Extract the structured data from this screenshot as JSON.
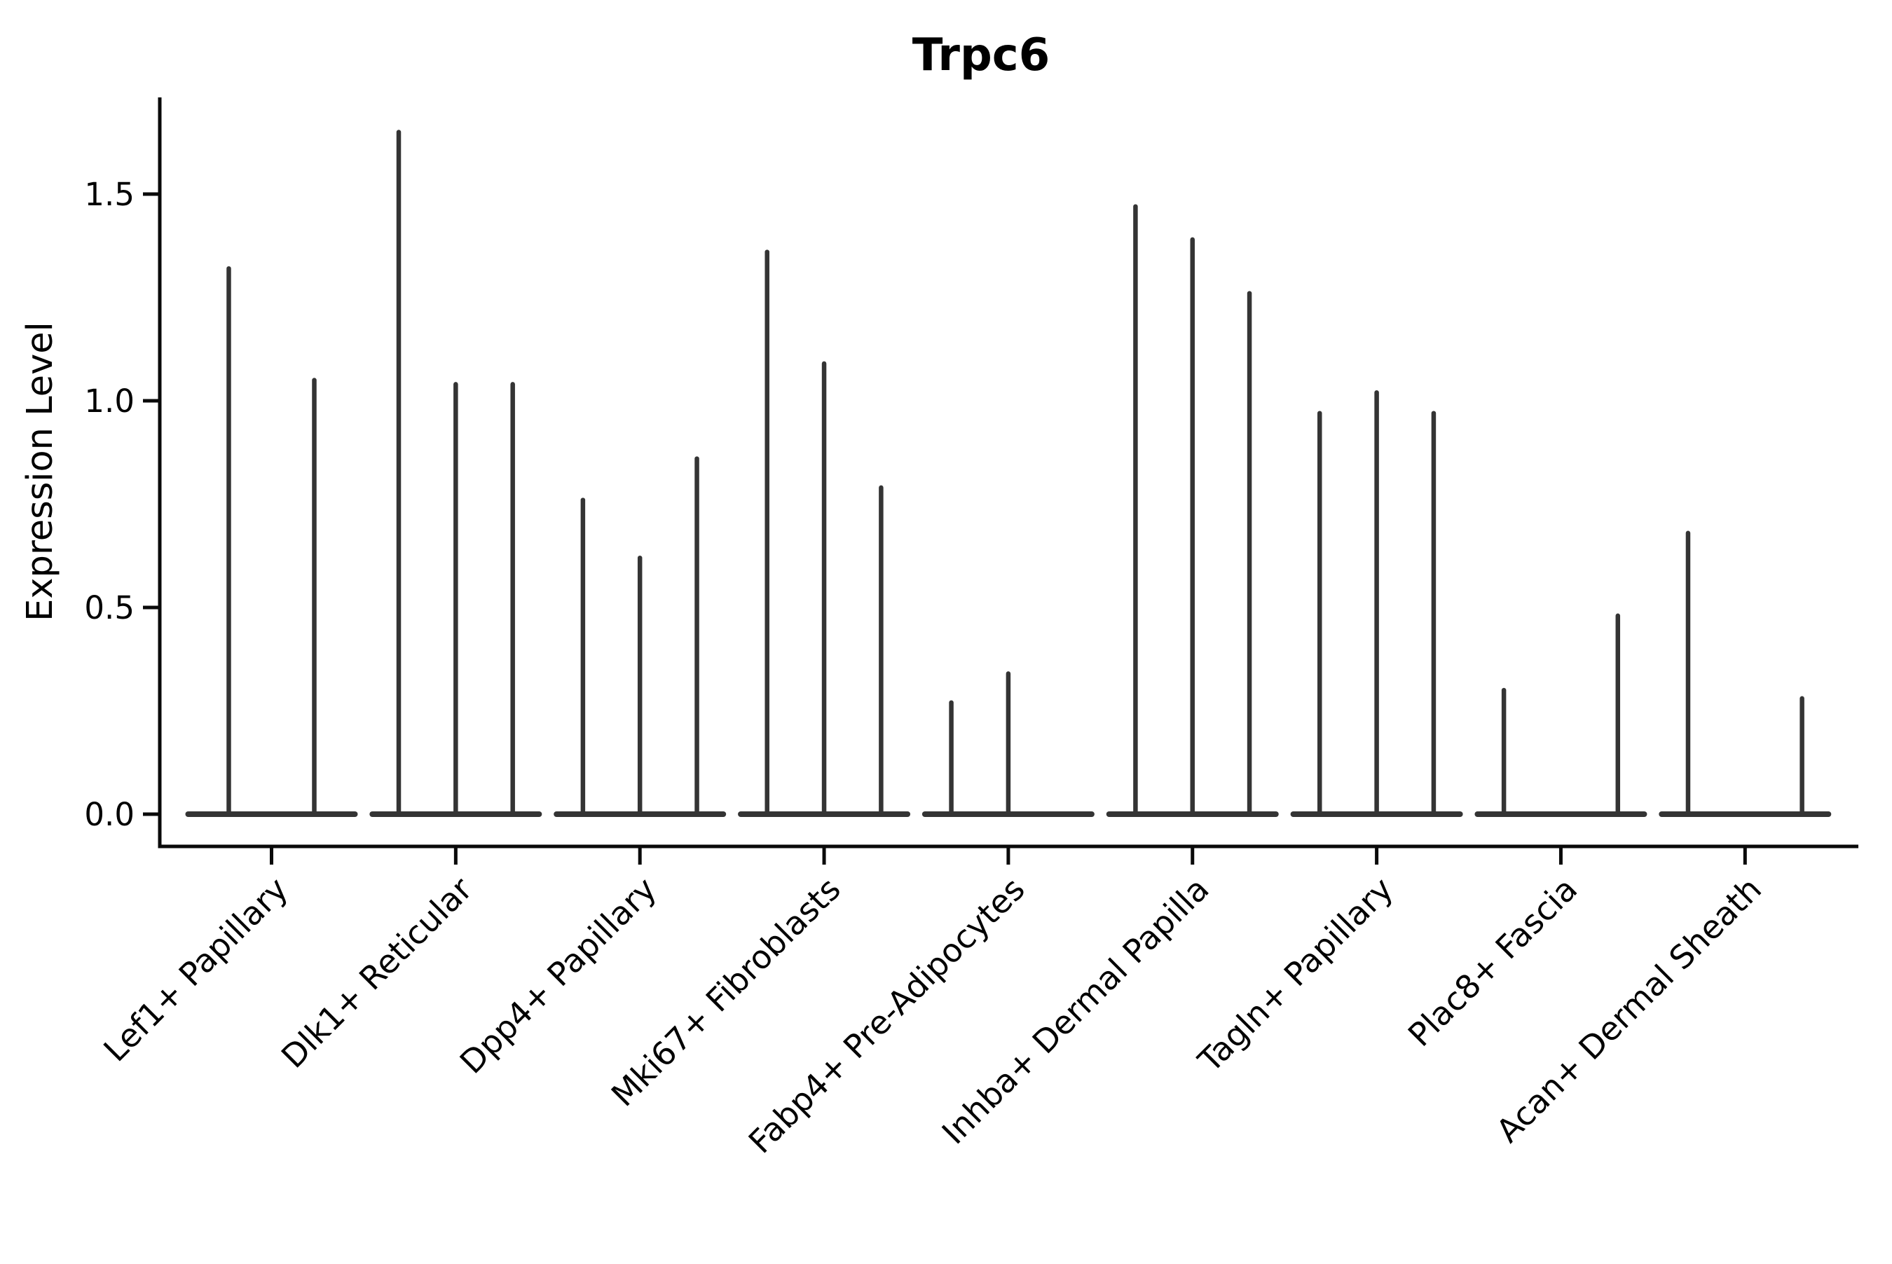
{
  "title": "Trpc6",
  "axes": {
    "ylabel": "Expression Level",
    "ytick_labels": [
      "1.5",
      "1.0",
      "0.5",
      "0.0"
    ]
  },
  "chart_data": {
    "type": "violin",
    "title": "Trpc6",
    "xlabel": "",
    "ylabel": "Expression Level",
    "yticks": [
      1.5,
      1.0,
      0.5,
      0.0
    ],
    "ytick_labels": [
      "1.5",
      "1.0",
      "0.5",
      "0.0"
    ],
    "ylim": [
      -0.08,
      1.73
    ],
    "grid": false,
    "legend": "none",
    "violin_color": "#343434",
    "axis_color": "#0a0a0a",
    "description": "Needle-thin violins (sparse expression): each category shows 2-3 violins with flat bases at 0 and thin spikes up to the max expression value; 0 means a flat violin with no spike.",
    "categories": [
      "Lef1+ Papillary",
      "Dlk1+ Reticular",
      "Dpp4+ Papillary",
      "Mki67+ Fibroblasts",
      "Fabp4+ Pre-Adipocytes",
      "Inhba+ Dermal Papilla",
      "Tagln+ Papillary",
      "Plac8+ Fascia",
      "Acan+ Dermal Sheath"
    ],
    "series": [
      {
        "category": "Lef1+ Papillary",
        "violin_maxima": [
          1.32,
          1.05
        ]
      },
      {
        "category": "Dlk1+ Reticular",
        "violin_maxima": [
          1.65,
          1.04,
          1.04
        ]
      },
      {
        "category": "Dpp4+ Papillary",
        "violin_maxima": [
          0.76,
          0.62,
          0.86
        ]
      },
      {
        "category": "Mki67+ Fibroblasts",
        "violin_maxima": [
          1.36,
          1.09,
          0.79
        ]
      },
      {
        "category": "Fabp4+ Pre-Adipocytes",
        "violin_maxima": [
          0.27,
          0.34,
          0
        ]
      },
      {
        "category": "Inhba+ Dermal Papilla",
        "violin_maxima": [
          1.47,
          1.39,
          1.26
        ]
      },
      {
        "category": "Tagln+ Papillary",
        "violin_maxima": [
          0.97,
          1.02,
          0.97
        ]
      },
      {
        "category": "Plac8+ Fascia",
        "violin_maxima": [
          0.3,
          0,
          0.48
        ]
      },
      {
        "category": "Acan+ Dermal Sheath",
        "violin_maxima": [
          0.68,
          0,
          0.28
        ]
      }
    ]
  }
}
